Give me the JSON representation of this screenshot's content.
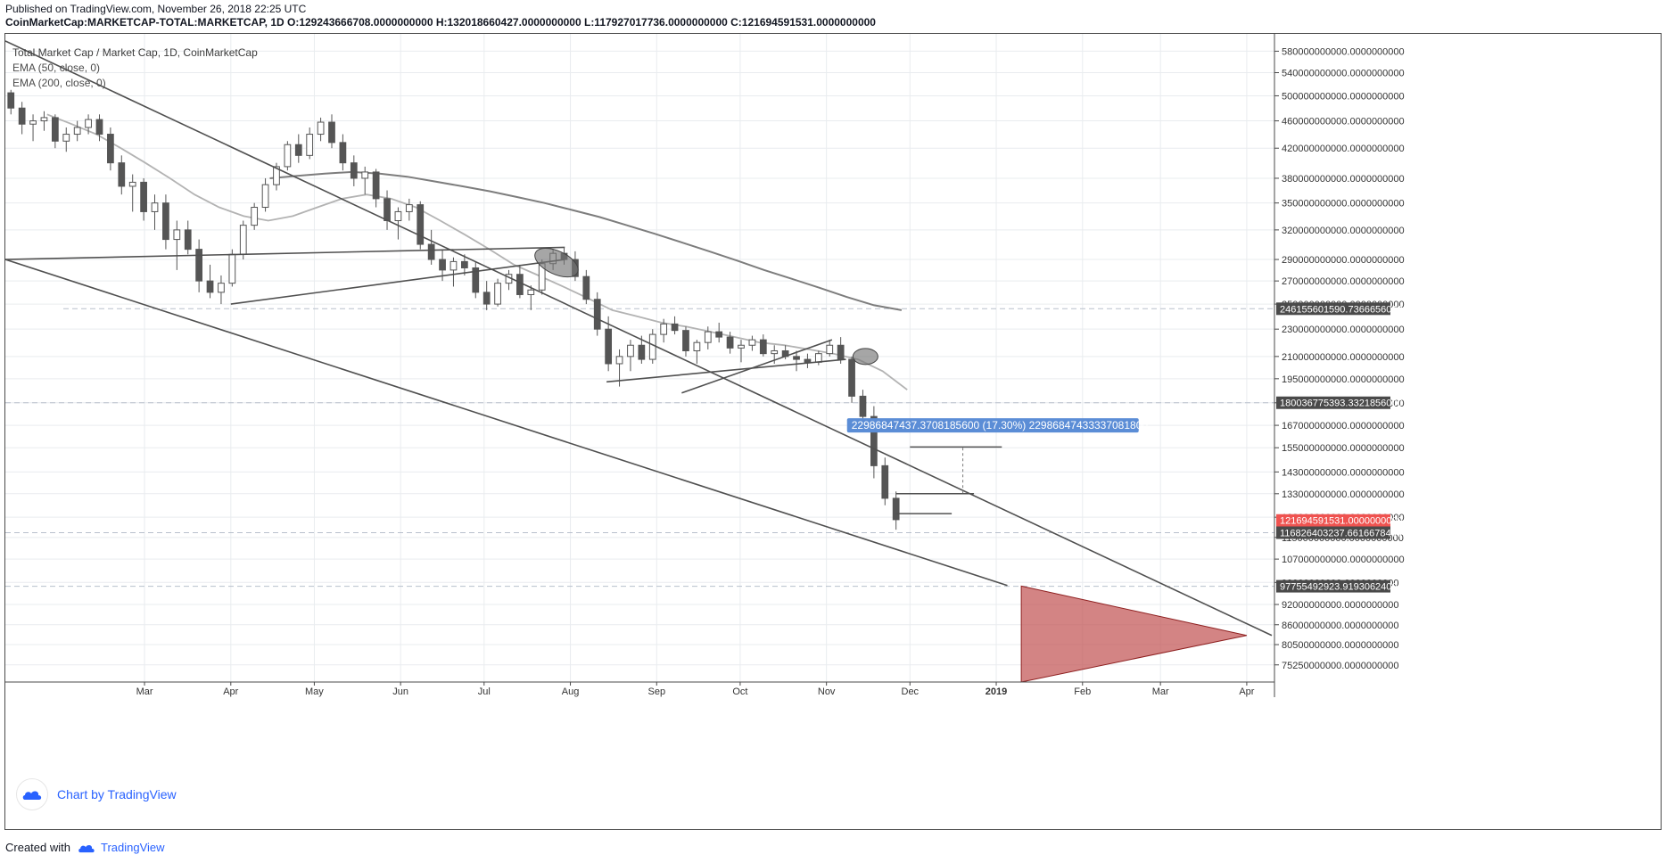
{
  "header": {
    "published": "Published on TradingView.com, November 26, 2018 22:25 UTC",
    "ohlc": "CoinMarketCap:MARKETCAP-TOTAL:MARKETCAP, 1D  O:129243666708.0000000000 H:132018660427.0000000000 L:117927017736.0000000000 C:121694591531.0000000000"
  },
  "legend": {
    "title": "Total Market Cap / Market Cap, 1D, CoinMarketCap",
    "ema50": "EMA (50, close, 0)",
    "ema200": "EMA (200, close, 0)"
  },
  "branding": {
    "chart_by": "Chart by TradingView",
    "created_with": "Created with",
    "tradingview": "TradingView"
  },
  "colors": {
    "axis": "#4a4a4a",
    "grid": "#e9ecef",
    "candle": "#555555",
    "trend": "#505050",
    "ema50": "#b3b3b3",
    "ema200": "#7d7d7d",
    "hline": "#b8c0cc",
    "price_label_bg": "#4a4a4a",
    "current_label_bg": "#ef5350",
    "measure_label_bg": "#5b8dd6",
    "target_fill": "#c05050",
    "brand": "#2962ff"
  },
  "chart_data": {
    "type": "candlestick",
    "title": "Total Market Cap / Market Cap, 1D, CoinMarketCap",
    "y_scale": "log",
    "ylim": [
      73000000000,
      600000000000
    ],
    "x_tick_labels": [
      "Mar",
      "Apr",
      "May",
      "Jun",
      "Jul",
      "Aug",
      "Sep",
      "Oct",
      "Nov",
      "Dec",
      "2019",
      "Feb",
      "Mar",
      "Apr"
    ],
    "y_tick_labels": [
      "580000000000.0000000000",
      "540000000000.0000000000",
      "500000000000.0000000000",
      "460000000000.0000000000",
      "420000000000.0000000000",
      "380000000000.0000000000",
      "350000000000.0000000000",
      "320000000000.0000000000",
      "290000000000.0000000000",
      "270000000000.0000000000",
      "250000000000.0000000000",
      "230000000000.0000000000",
      "210000000000.0000000000",
      "195000000000.0000000000",
      "180000000000.0000000000",
      "167000000000.0000000000",
      "155000000000.0000000000",
      "143000000000.0000000000",
      "133000000000.0000000000",
      "123000000000.0000000000",
      "115000000000.0000000000",
      "107000000000.0000000000",
      "99000000000.0000000000",
      "92000000000.0000000000",
      "86000000000.0000000000",
      "80500000000.0000000000",
      "75250000000.0000000000"
    ],
    "price_labels": [
      {
        "value": 246155601590.73666,
        "text": "246155601590.7366656000",
        "kind": "level"
      },
      {
        "value": 180036775393.33218,
        "text": "180036775393.3321856000",
        "kind": "level"
      },
      {
        "value": 121694591531.0,
        "text": "121694591531.0000000000",
        "kind": "current"
      },
      {
        "value": 116826403237.66167,
        "text": "116826403237.6616678400",
        "kind": "level"
      },
      {
        "value": 97755492923.91931,
        "text": "97755492923.9193062400",
        "kind": "level"
      }
    ],
    "measure_label": "22986847437.3708185600 (17.30%) 22986847433337081800",
    "candles_ohlc_in_billions": [
      [
        505,
        510,
        470,
        480
      ],
      [
        480,
        490,
        440,
        455
      ],
      [
        455,
        470,
        430,
        460
      ],
      [
        460,
        475,
        445,
        465
      ],
      [
        465,
        470,
        420,
        430
      ],
      [
        430,
        450,
        415,
        440
      ],
      [
        440,
        460,
        430,
        450
      ],
      [
        450,
        470,
        440,
        462
      ],
      [
        462,
        470,
        430,
        440
      ],
      [
        440,
        450,
        390,
        400
      ],
      [
        400,
        410,
        360,
        370
      ],
      [
        370,
        385,
        340,
        375
      ],
      [
        375,
        380,
        330,
        340
      ],
      [
        340,
        360,
        320,
        350
      ],
      [
        350,
        360,
        300,
        310
      ],
      [
        310,
        330,
        280,
        320
      ],
      [
        320,
        330,
        295,
        300
      ],
      [
        300,
        310,
        260,
        270
      ],
      [
        270,
        285,
        255,
        260
      ],
      [
        260,
        275,
        250,
        268
      ],
      [
        268,
        300,
        265,
        295
      ],
      [
        295,
        330,
        290,
        325
      ],
      [
        325,
        350,
        320,
        345
      ],
      [
        345,
        380,
        340,
        372
      ],
      [
        372,
        400,
        365,
        395
      ],
      [
        395,
        430,
        390,
        425
      ],
      [
        425,
        440,
        400,
        410
      ],
      [
        410,
        450,
        405,
        440
      ],
      [
        440,
        465,
        430,
        458
      ],
      [
        458,
        470,
        420,
        428
      ],
      [
        428,
        440,
        390,
        400
      ],
      [
        400,
        410,
        370,
        380
      ],
      [
        380,
        395,
        360,
        388
      ],
      [
        388,
        392,
        345,
        355
      ],
      [
        355,
        365,
        320,
        330
      ],
      [
        330,
        345,
        310,
        340
      ],
      [
        340,
        355,
        330,
        348
      ],
      [
        348,
        352,
        300,
        305
      ],
      [
        305,
        320,
        285,
        290
      ],
      [
        290,
        300,
        270,
        280
      ],
      [
        280,
        292,
        265,
        288
      ],
      [
        288,
        295,
        275,
        282
      ],
      [
        282,
        288,
        255,
        260
      ],
      [
        260,
        270,
        245,
        250
      ],
      [
        250,
        272,
        248,
        268
      ],
      [
        268,
        280,
        262,
        276
      ],
      [
        276,
        285,
        255,
        258
      ],
      [
        258,
        266,
        245,
        262
      ],
      [
        262,
        290,
        258,
        286
      ],
      [
        286,
        300,
        280,
        296
      ],
      [
        296,
        302,
        285,
        290
      ],
      [
        290,
        298,
        270,
        274
      ],
      [
        274,
        280,
        250,
        254
      ],
      [
        254,
        260,
        225,
        230
      ],
      [
        230,
        240,
        200,
        205
      ],
      [
        205,
        215,
        190,
        210
      ],
      [
        210,
        222,
        200,
        218
      ],
      [
        218,
        225,
        205,
        208
      ],
      [
        208,
        230,
        205,
        226
      ],
      [
        226,
        238,
        220,
        234
      ],
      [
        234,
        240,
        226,
        229
      ],
      [
        229,
        232,
        210,
        214
      ],
      [
        214,
        222,
        205,
        220
      ],
      [
        220,
        232,
        215,
        228
      ],
      [
        228,
        235,
        220,
        224
      ],
      [
        224,
        228,
        212,
        216
      ],
      [
        216,
        222,
        206,
        218
      ],
      [
        218,
        225,
        214,
        222
      ],
      [
        222,
        226,
        210,
        212
      ],
      [
        212,
        218,
        205,
        214
      ],
      [
        214,
        218,
        208,
        210
      ],
      [
        210,
        214,
        200,
        208
      ],
      [
        208,
        212,
        202,
        206
      ],
      [
        206,
        214,
        204,
        212
      ],
      [
        212,
        222,
        210,
        218
      ],
      [
        218,
        224,
        205,
        208
      ],
      [
        208,
        210,
        180,
        184
      ],
      [
        184,
        188,
        170,
        172
      ],
      [
        172,
        178,
        140,
        146
      ],
      [
        146,
        150,
        128,
        131
      ],
      [
        131,
        134,
        118,
        122
      ]
    ],
    "ema50_in_billions": [
      470,
      455,
      440,
      420,
      400,
      380,
      360,
      345,
      335,
      330,
      335,
      345,
      355,
      360,
      355,
      345,
      330,
      315,
      300,
      285,
      275,
      265,
      255,
      245,
      240,
      235,
      232,
      228,
      224,
      220,
      218,
      215,
      212,
      208,
      200,
      188
    ],
    "ema200_in_billions": [
      380,
      383,
      386,
      388,
      386,
      382,
      376,
      370,
      364,
      357,
      350,
      342,
      334,
      325,
      316,
      307,
      298,
      289,
      280,
      272,
      264,
      256,
      249,
      245
    ],
    "trendlines": [
      {
        "name": "upper-channel",
        "from": [
          "2018-01-10",
          600
        ],
        "to": [
          "2019-04-10",
          83
        ]
      },
      {
        "name": "lower-channel",
        "from": [
          "2018-01-10",
          290
        ],
        "to": [
          "2019-01-05",
          98
        ]
      },
      {
        "name": "wedge-top",
        "from": [
          "2018-01-10",
          290
        ],
        "to": [
          "2018-07-30",
          302
        ]
      },
      {
        "name": "wedge-bottom",
        "from": [
          "2018-04-01",
          250
        ],
        "to": [
          "2018-07-30",
          290
        ]
      },
      {
        "name": "flag-bottom",
        "from": [
          "2018-08-14",
          193
        ],
        "to": [
          "2018-11-08",
          208
        ]
      },
      {
        "name": "flag-top",
        "from": [
          "2018-09-10",
          186
        ],
        "to": [
          "2018-11-03",
          222
        ]
      }
    ],
    "target_zone_in_billions": {
      "top": 97.8,
      "bottom": 73,
      "apex": 83
    },
    "grid": true
  }
}
